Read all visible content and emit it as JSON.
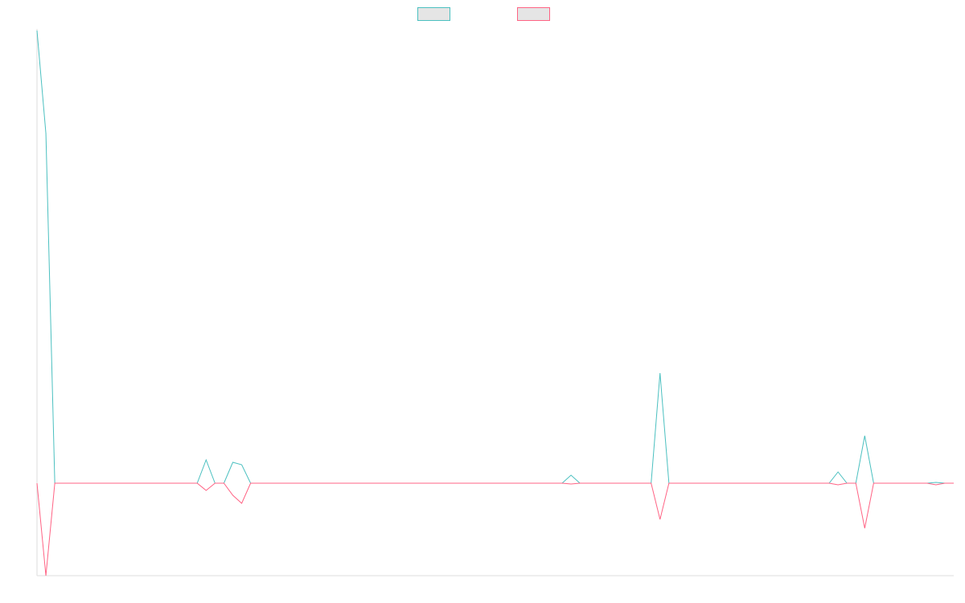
{
  "chart_data": {
    "type": "line",
    "title": "",
    "xlabel": "",
    "ylabel": "",
    "grid": false,
    "legend": "top-center",
    "x": [
      0,
      1,
      2,
      3,
      4,
      5,
      6,
      7,
      8,
      9,
      10,
      11,
      12,
      13,
      14,
      15,
      16,
      17,
      18,
      19,
      20,
      21,
      22,
      23,
      24,
      25,
      26,
      27,
      28,
      29,
      30,
      31,
      32,
      33,
      34,
      35,
      36,
      37,
      38,
      39,
      40,
      41,
      42,
      43,
      44,
      45,
      46,
      47,
      48,
      49,
      50,
      51,
      52,
      53,
      54,
      55,
      56,
      57,
      58,
      59,
      60,
      61,
      62,
      63,
      64,
      65,
      66,
      67,
      68,
      69,
      70,
      71,
      72,
      73,
      74,
      75,
      76,
      77,
      78,
      79,
      80,
      81,
      82,
      83,
      84,
      85,
      86,
      87,
      88,
      89,
      90,
      91,
      92,
      93,
      94,
      95,
      96,
      97,
      98,
      99,
      100,
      101,
      102,
      103
    ],
    "ylim": [
      -115,
      565
    ],
    "series": [
      {
        "name": "",
        "color": "#4bc0c0",
        "fill": "#e5e5e5",
        "values": [
          563,
          435,
          0,
          0,
          0,
          0,
          0,
          0,
          0,
          0,
          0,
          0,
          0,
          0,
          0,
          0,
          0,
          0,
          0,
          29,
          0,
          0,
          26,
          23,
          0,
          0,
          0,
          0,
          0,
          0,
          0,
          0,
          0,
          0,
          0,
          0,
          0,
          0,
          0,
          0,
          0,
          0,
          0,
          0,
          0,
          0,
          0,
          0,
          0,
          0,
          0,
          0,
          0,
          0,
          0,
          0,
          0,
          0,
          0,
          0,
          10,
          0,
          0,
          0,
          0,
          0,
          0,
          0,
          0,
          0,
          137,
          0,
          0,
          0,
          0,
          0,
          0,
          0,
          0,
          0,
          0,
          0,
          0,
          0,
          0,
          0,
          0,
          0,
          0,
          0,
          14,
          0,
          0,
          59,
          0,
          0,
          0,
          0,
          0,
          0,
          0,
          1,
          0,
          0
        ]
      },
      {
        "name": "",
        "color": "#ff6384",
        "fill": "#e5e5e5",
        "values": [
          0,
          -115,
          0,
          0,
          0,
          0,
          0,
          0,
          0,
          0,
          0,
          0,
          0,
          0,
          0,
          0,
          0,
          0,
          0,
          -9,
          0,
          0,
          -15,
          -25,
          0,
          0,
          0,
          0,
          0,
          0,
          0,
          0,
          0,
          0,
          0,
          0,
          0,
          0,
          0,
          0,
          0,
          0,
          0,
          0,
          0,
          0,
          0,
          0,
          0,
          0,
          0,
          0,
          0,
          0,
          0,
          0,
          0,
          0,
          0,
          0,
          -1,
          0,
          0,
          0,
          0,
          0,
          0,
          0,
          0,
          0,
          -45,
          0,
          0,
          0,
          0,
          0,
          0,
          0,
          0,
          0,
          0,
          0,
          0,
          0,
          0,
          0,
          0,
          0,
          0,
          0,
          -2,
          0,
          0,
          -56,
          0,
          0,
          0,
          0,
          0,
          0,
          0,
          -2,
          0,
          0
        ]
      }
    ]
  }
}
